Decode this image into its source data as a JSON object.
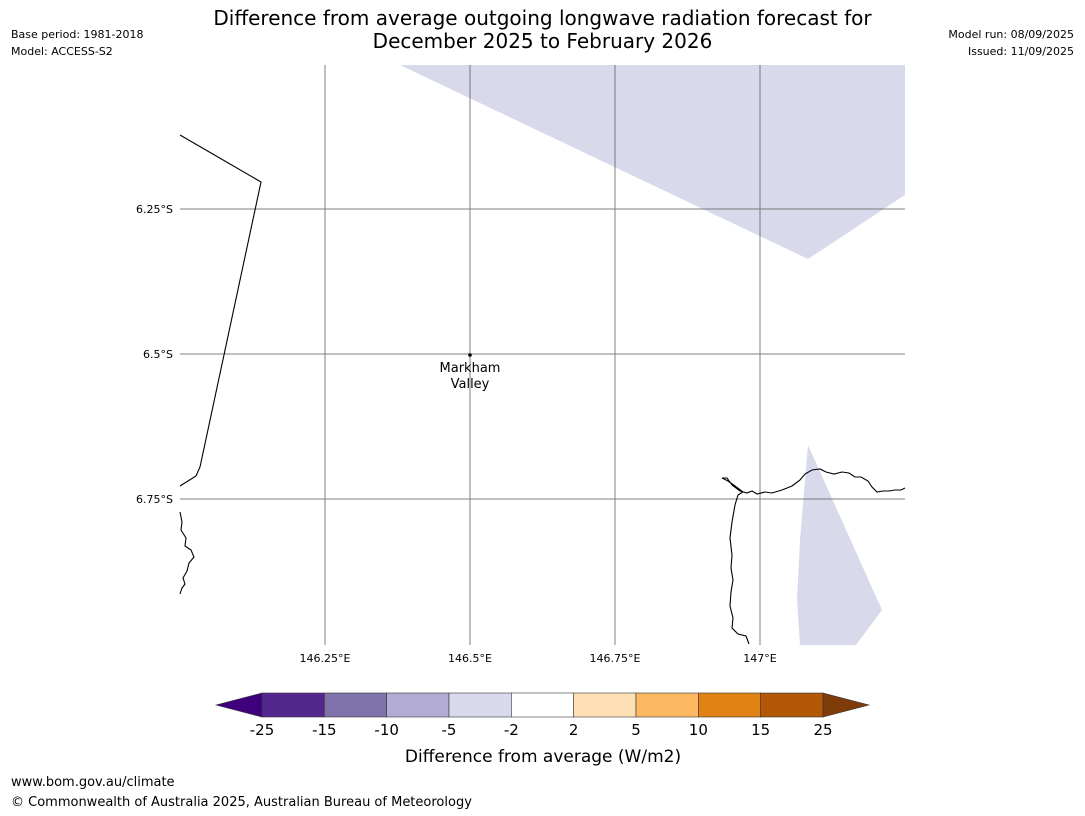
{
  "title_line1": "Difference from average outgoing longwave radiation forecast for",
  "title_line2": "December 2025 to February 2026",
  "base_period": "Base period: 1981-2018",
  "model": "Model: ACCESS-S2",
  "model_run": "Model run: 08/09/2025",
  "issued": "Issued: 11/09/2025",
  "lat_ticks": [
    "6.25°S",
    "6.5°S",
    "6.75°S"
  ],
  "lon_ticks": [
    "146.25°E",
    "146.5°E",
    "146.75°E",
    "147°E"
  ],
  "place": {
    "name_line1": "Markham",
    "name_line2": "Valley"
  },
  "colorbar": {
    "title": "Difference from average (W/m2)",
    "tick_labels": [
      "-25",
      "-15",
      "-10",
      "-5",
      "-2",
      "2",
      "5",
      "10",
      "15",
      "25"
    ],
    "colors": [
      "#3f007d",
      "#54278f",
      "#8073ac",
      "#b2abd2",
      "#d8daeb",
      "#ffffff",
      "#fee0b6",
      "#fdb863",
      "#e08214",
      "#b35806",
      "#7f3b08"
    ],
    "boundaries": [
      -25,
      -15,
      -10,
      -5,
      -2,
      2,
      5,
      10,
      15,
      25
    ]
  },
  "footer_url": "www.bom.gov.au/climate",
  "copyright": "© Commonwealth of Australia 2025, Australian Bureau of Meteorology"
}
